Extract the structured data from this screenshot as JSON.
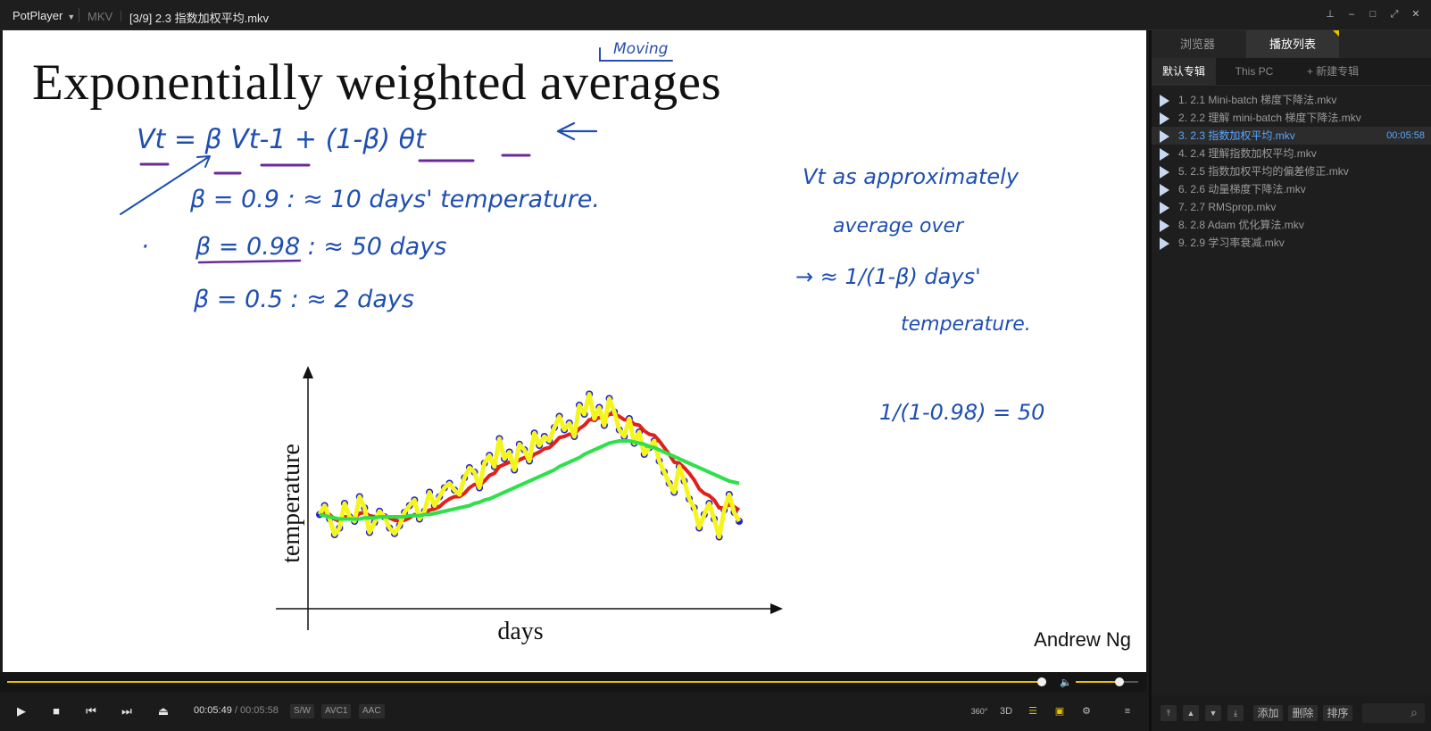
{
  "window": {
    "app_name": "PotPlayer",
    "format": "MKV",
    "title": "[3/9] 2.3 指数加权平均.mkv"
  },
  "slide": {
    "title": "Exponentially weighted averages",
    "annotation_top": "Moving",
    "credit": "Andrew Ng",
    "handwriting": {
      "formula": "Vt = β Vt-1 + (1-β) θt",
      "line1": "β = 0.9  :  ≈ 10 days' temperature.",
      "line2": "β = 0.98  :  ≈ 50 days",
      "line3": "β = 0.5  :  ≈ 2 days",
      "note1": "Vt as approximately",
      "note2": "average over",
      "note3": "→ ≈ 1/(1-β) days'",
      "note4": "temperature.",
      "calc": "1/(1-0.98) = 50"
    }
  },
  "chart_data": {
    "type": "line",
    "xlabel": "days",
    "ylabel": "temperature",
    "series": [
      {
        "color": "#1f1fd6",
        "kind": "scatter",
        "values": [
          42,
          50,
          38,
          24,
          30,
          52,
          40,
          36,
          58,
          48,
          26,
          35,
          45,
          40,
          30,
          25,
          32,
          44,
          50,
          55,
          38,
          45,
          62,
          50,
          58,
          66,
          70,
          64,
          60,
          75,
          84,
          80,
          66,
          88,
          95,
          85,
          110,
          92,
          98,
          82,
          105,
          100,
          90,
          115,
          104,
          112,
          108,
          120,
          130,
          118,
          124,
          112,
          140,
          132,
          150,
          128,
          138,
          122,
          146,
          134,
          118,
          112,
          128,
          106,
          116,
          96,
          102,
          108,
          90,
          80,
          70,
          62,
          85,
          72,
          56,
          48,
          30,
          42,
          52,
          38,
          22,
          46,
          60,
          44,
          36
        ]
      },
      {
        "color": "#e0201a",
        "kind": "line",
        "values": [
          42,
          44,
          42,
          38,
          36,
          40,
          40,
          39,
          43,
          44,
          41,
          40,
          41,
          41,
          39,
          37,
          36,
          37,
          39,
          42,
          41,
          42,
          46,
          47,
          49,
          53,
          56,
          58,
          58,
          61,
          66,
          69,
          68,
          72,
          77,
          79,
          85,
          87,
          89,
          88,
          91,
          93,
          92,
          96,
          98,
          101,
          102,
          106,
          111,
          112,
          114,
          114,
          119,
          122,
          127,
          127,
          129,
          128,
          132,
          132,
          130,
          127,
          127,
          123,
          122,
          117,
          114,
          113,
          108,
          102,
          96,
          89,
          88,
          84,
          79,
          73,
          65,
          61,
          59,
          55,
          48,
          48,
          51,
          49,
          46
        ]
      },
      {
        "color": "#f5f51e",
        "kind": "line",
        "values": [
          42,
          50,
          38,
          24,
          30,
          52,
          40,
          36,
          58,
          48,
          26,
          35,
          45,
          40,
          30,
          25,
          32,
          44,
          50,
          55,
          38,
          45,
          62,
          50,
          58,
          66,
          70,
          64,
          60,
          75,
          84,
          80,
          66,
          88,
          95,
          85,
          110,
          92,
          98,
          82,
          105,
          100,
          90,
          115,
          104,
          112,
          108,
          120,
          130,
          118,
          124,
          112,
          140,
          132,
          150,
          128,
          138,
          122,
          146,
          134,
          118,
          112,
          128,
          106,
          116,
          96,
          102,
          108,
          90,
          80,
          70,
          62,
          85,
          72,
          56,
          48,
          30,
          42,
          52,
          38,
          22,
          46,
          60,
          44,
          36
        ]
      },
      {
        "color": "#2ee04a",
        "kind": "line",
        "values": [
          42,
          41,
          40,
          39,
          38,
          38,
          38,
          38,
          38,
          39,
          39,
          39,
          40,
          40,
          40,
          40,
          40,
          40,
          41,
          41,
          41,
          42,
          42,
          43,
          44,
          45,
          46,
          47,
          48,
          49,
          50,
          52,
          53,
          55,
          56,
          58,
          60,
          62,
          64,
          66,
          68,
          70,
          72,
          74,
          76,
          78,
          80,
          82,
          85,
          87,
          89,
          91,
          93,
          96,
          98,
          100,
          102,
          104,
          106,
          107,
          108,
          108,
          108,
          107,
          106,
          105,
          103,
          102,
          100,
          98,
          96,
          94,
          92,
          90,
          88,
          86,
          84,
          82,
          80,
          78,
          76,
          74,
          72,
          71,
          70
        ]
      }
    ]
  },
  "seek": {
    "progress": 0.9965,
    "volume": 0.7
  },
  "controls": {
    "current_time": "00:05:49",
    "separator": "/",
    "duration": "00:05:58",
    "tags": [
      "S/W",
      "AVC1",
      "AAC"
    ],
    "icon_360": "360°",
    "icon_3d": "3D"
  },
  "panel": {
    "tabs": [
      "浏览器",
      "播放列表"
    ],
    "subtabs": [
      "默认专辑",
      "This PC",
      "+ 新建专辑"
    ],
    "playlist": [
      {
        "label": "1. 2.1 Mini-batch 梯度下降法.mkv"
      },
      {
        "label": "2. 2.2 理解 mini-batch 梯度下降法.mkv"
      },
      {
        "label": "3. 2.3 指数加权平均.mkv",
        "time": "00:05:58"
      },
      {
        "label": "4. 2.4 理解指数加权平均.mkv"
      },
      {
        "label": "5. 2.5 指数加权平均的偏差修正.mkv"
      },
      {
        "label": "6. 2.6 动量梯度下降法.mkv"
      },
      {
        "label": "7. 2.7 RMSprop.mkv"
      },
      {
        "label": "8. 2.8 Adam 优化算法.mkv"
      },
      {
        "label": "9. 2.9 学习率衰减.mkv"
      }
    ],
    "bottom_buttons": [
      "添加",
      "删除",
      "排序"
    ]
  }
}
